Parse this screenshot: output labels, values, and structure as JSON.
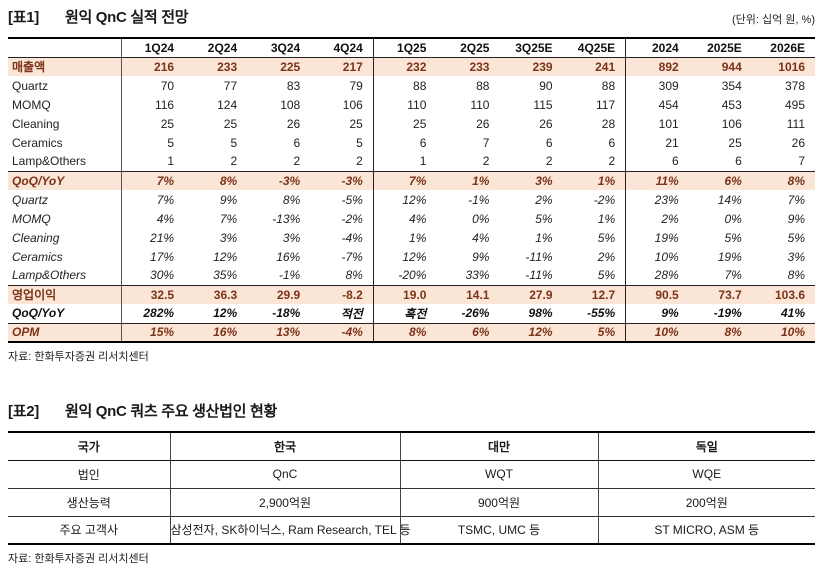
{
  "table1": {
    "tag": "[표1]",
    "title": "원익 QnC 실적 전망",
    "unit": "(단위: 십억 원, %)",
    "source": "자료: 한화투자증권 리서치센터",
    "col_headers": [
      "1Q24",
      "2Q24",
      "3Q24",
      "4Q24",
      "1Q25",
      "2Q25",
      "3Q25E",
      "4Q25E",
      "2024",
      "2025E",
      "2026E"
    ],
    "rows": [
      {
        "label": "매출액",
        "cls": "r-total",
        "line": false,
        "values": [
          "216",
          "233",
          "225",
          "217",
          "232",
          "233",
          "239",
          "241",
          "892",
          "944",
          "1016"
        ]
      },
      {
        "label": "Quartz",
        "cls": "r-sub",
        "line": false,
        "values": [
          "70",
          "77",
          "83",
          "79",
          "88",
          "88",
          "90",
          "88",
          "309",
          "354",
          "378"
        ]
      },
      {
        "label": "MOMQ",
        "cls": "r-sub",
        "line": false,
        "values": [
          "116",
          "124",
          "108",
          "106",
          "110",
          "110",
          "115",
          "117",
          "454",
          "453",
          "495"
        ]
      },
      {
        "label": "Cleaning",
        "cls": "r-sub",
        "line": false,
        "values": [
          "25",
          "25",
          "26",
          "25",
          "25",
          "26",
          "26",
          "28",
          "101",
          "106",
          "111"
        ]
      },
      {
        "label": "Ceramics",
        "cls": "r-sub",
        "line": false,
        "values": [
          "5",
          "5",
          "6",
          "5",
          "6",
          "7",
          "6",
          "6",
          "21",
          "25",
          "26"
        ]
      },
      {
        "label": "Lamp&Others",
        "cls": "r-sub",
        "line": false,
        "values": [
          "1",
          "2",
          "2",
          "2",
          "1",
          "2",
          "2",
          "2",
          "6",
          "6",
          "7"
        ]
      },
      {
        "label": "QoQ/YoY",
        "cls": "r-ratio",
        "line": true,
        "values": [
          "7%",
          "8%",
          "-3%",
          "-3%",
          "7%",
          "1%",
          "3%",
          "1%",
          "11%",
          "6%",
          "8%"
        ]
      },
      {
        "label": "Quartz",
        "cls": "r-rsub",
        "line": false,
        "values": [
          "7%",
          "9%",
          "8%",
          "-5%",
          "12%",
          "-1%",
          "2%",
          "-2%",
          "23%",
          "14%",
          "7%"
        ]
      },
      {
        "label": "MOMQ",
        "cls": "r-rsub",
        "line": false,
        "values": [
          "4%",
          "7%",
          "-13%",
          "-2%",
          "4%",
          "0%",
          "5%",
          "1%",
          "2%",
          "0%",
          "9%"
        ]
      },
      {
        "label": "Cleaning",
        "cls": "r-rsub",
        "line": false,
        "values": [
          "21%",
          "3%",
          "3%",
          "-4%",
          "1%",
          "4%",
          "1%",
          "5%",
          "19%",
          "5%",
          "5%"
        ]
      },
      {
        "label": "Ceramics",
        "cls": "r-rsub",
        "line": false,
        "values": [
          "17%",
          "12%",
          "16%",
          "-7%",
          "12%",
          "9%",
          "-11%",
          "2%",
          "10%",
          "19%",
          "3%"
        ]
      },
      {
        "label": "Lamp&Others",
        "cls": "r-rsub",
        "line": false,
        "values": [
          "30%",
          "35%",
          "-1%",
          "8%",
          "-20%",
          "33%",
          "-11%",
          "5%",
          "28%",
          "7%",
          "8%"
        ]
      },
      {
        "label": "영업이익",
        "cls": "r-op",
        "line": true,
        "values": [
          "32.5",
          "36.3",
          "29.9",
          "-8.2",
          "19.0",
          "14.1",
          "27.9",
          "12.7",
          "90.5",
          "73.7",
          "103.6"
        ]
      },
      {
        "label": "QoQ/YoY",
        "cls": "r-opr",
        "line": false,
        "values": [
          "282%",
          "12%",
          "-18%",
          "적전",
          "흑전",
          "-26%",
          "98%",
          "-55%",
          "9%",
          "-19%",
          "41%"
        ]
      },
      {
        "label": "OPM",
        "cls": "r-opm",
        "line": true,
        "values": [
          "15%",
          "16%",
          "13%",
          "-4%",
          "8%",
          "6%",
          "12%",
          "5%",
          "10%",
          "8%",
          "10%"
        ]
      }
    ]
  },
  "table2": {
    "tag": "[표2]",
    "title": "원익 QnC 쿼츠 주요 생산법인 현황",
    "source": "자료: 한화투자증권 리서치센터",
    "header": [
      "국가",
      "한국",
      "대만",
      "독일"
    ],
    "rows": [
      [
        "법인",
        "QnC",
        "WQT",
        "WQE"
      ],
      [
        "생산능력",
        "2,900억원",
        "900억원",
        "200억원"
      ],
      [
        "주요 고객사",
        "삼성전자, SK하이닉스, Ram Research, TEL 등",
        "TSMC, UMC 등",
        "ST MICRO, ASM 등"
      ]
    ]
  },
  "colors": {
    "row_highlight": "#fbe5d6",
    "highlight_text": "#7b3418",
    "border_heavy": "#000000"
  }
}
